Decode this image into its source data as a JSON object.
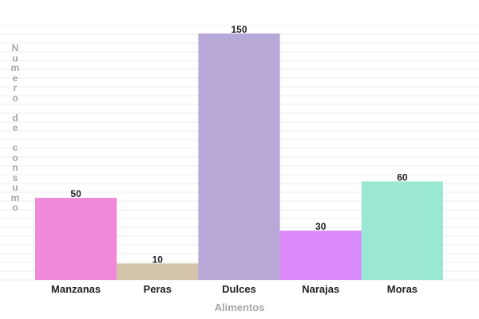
{
  "chart_data": {
    "type": "bar",
    "categories": [
      "Manzanas",
      "Peras",
      "Dulces",
      "Narajas",
      "Moras"
    ],
    "values": [
      50,
      10,
      150,
      30,
      60
    ],
    "colors": [
      "#f08ad8",
      "#d4c4ac",
      "#b8a8d8",
      "#d98af8",
      "#9ae8d4"
    ],
    "xlabel": "Alimentos",
    "ylabel": "Numero de consumo",
    "ylim": [
      0,
      150
    ],
    "grid": true,
    "grid_color": "#ececec",
    "label_color": "#a6a6a6",
    "legend": "none"
  }
}
